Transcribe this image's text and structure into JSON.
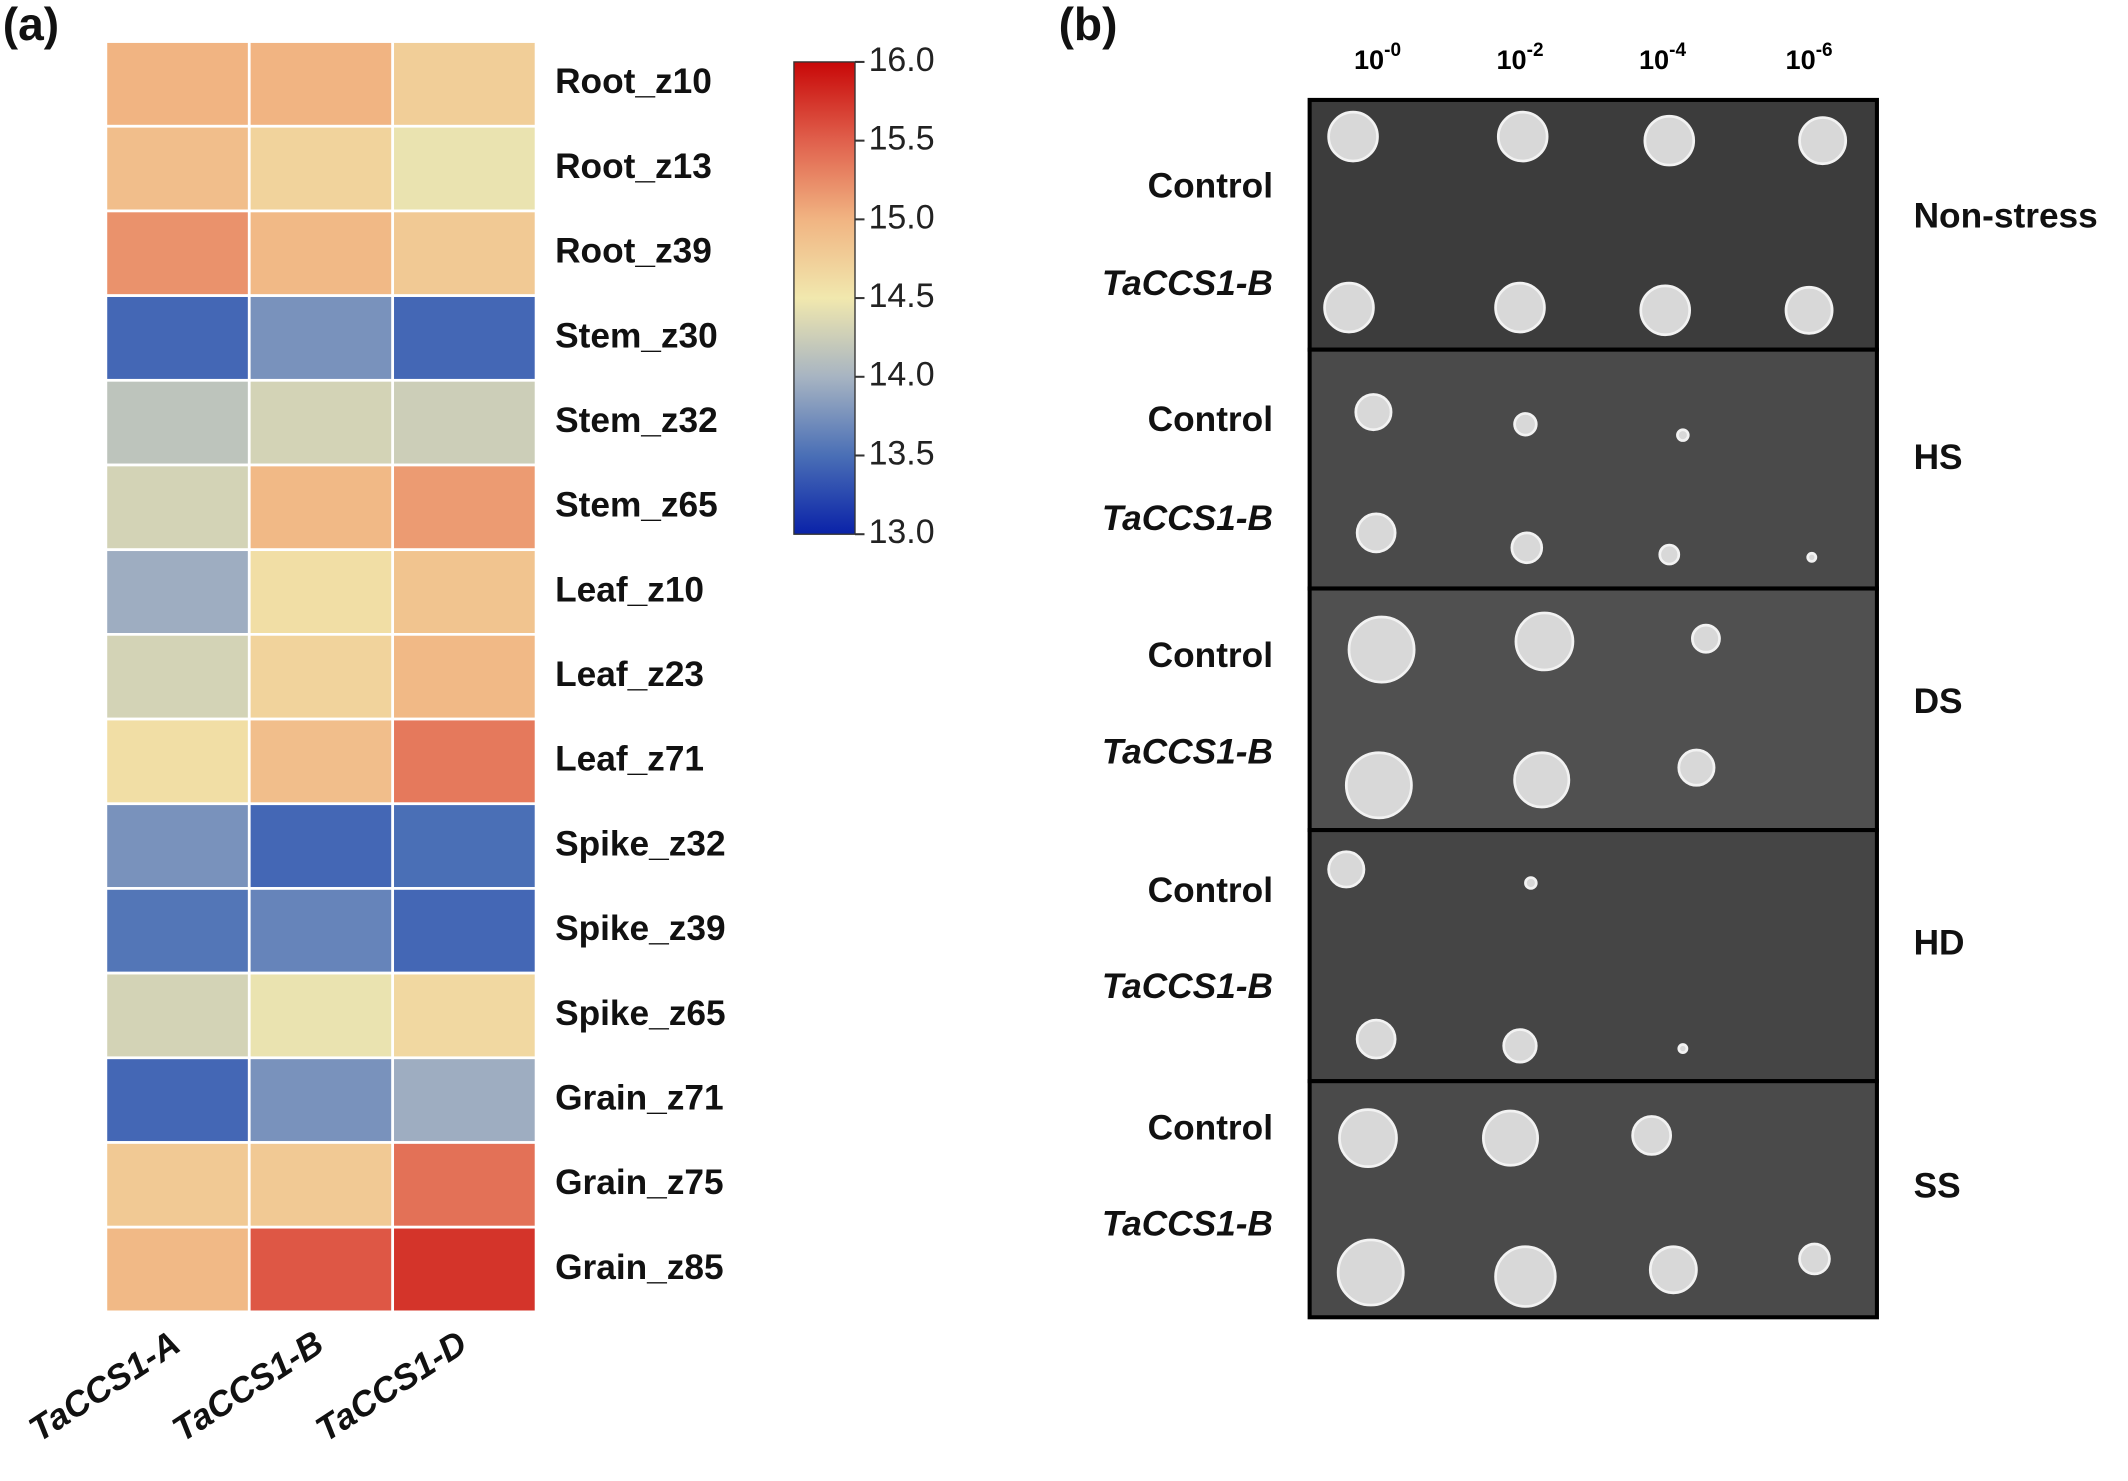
{
  "chart_data": {
    "type": "heatmap",
    "panel_label": "(a)",
    "rows": [
      "Root_z10",
      "Root_z13",
      "Root_z39",
      "Stem_z30",
      "Stem_z32",
      "Stem_z65",
      "Leaf_z10",
      "Leaf_z23",
      "Leaf_z71",
      "Spike_z32",
      "Spike_z39",
      "Spike_z65",
      "Grain_z71",
      "Grain_z75",
      "Grain_z85"
    ],
    "columns": [
      "TaCCS1-A",
      "TaCCS1-B",
      "TaCCS1-D"
    ],
    "values": [
      [
        15.0,
        15.0,
        14.75
      ],
      [
        14.9,
        14.7,
        14.45
      ],
      [
        15.2,
        14.95,
        14.8
      ],
      [
        13.45,
        13.75,
        13.45
      ],
      [
        14.15,
        14.3,
        14.25
      ],
      [
        14.3,
        14.95,
        15.15
      ],
      [
        13.95,
        14.6,
        14.85
      ],
      [
        14.3,
        14.7,
        14.95
      ],
      [
        14.6,
        14.9,
        15.35
      ],
      [
        13.75,
        13.45,
        13.5
      ],
      [
        13.55,
        13.65,
        13.45
      ],
      [
        14.3,
        14.45,
        14.65
      ],
      [
        13.45,
        13.75,
        13.95
      ],
      [
        14.8,
        14.8,
        15.4
      ],
      [
        14.95,
        15.55,
        15.75
      ]
    ],
    "zlim": [
      13,
      16
    ],
    "zticks": [
      {
        "value": 13,
        "label": "13.0"
      },
      13.5,
      {
        "value": 14,
        "label": "14.0"
      },
      14.5,
      {
        "value": 15,
        "label": "15.0"
      },
      15.5,
      {
        "value": 16,
        "label": "16.0"
      }
    ],
    "colormap": [
      "#0a22a8",
      "#4a6fb6",
      "#a7b4c2",
      "#f1e8ae",
      "#f1b482",
      "#e0604c",
      "#c80808"
    ]
  },
  "panel_b": {
    "panel_label": "(b)",
    "dilutions": [
      {
        "base": "10",
        "exponent": "-0"
      },
      {
        "base": "10",
        "exponent": "-2"
      },
      {
        "base": "10",
        "exponent": "-4"
      },
      {
        "base": "10",
        "exponent": "-6"
      }
    ],
    "conditions": [
      {
        "name": "Non-stress",
        "strains": [
          "Control",
          "TaCCS1-B"
        ]
      },
      {
        "name": "HS",
        "strains": [
          "Control",
          "TaCCS1-B"
        ]
      },
      {
        "name": "DS",
        "strains": [
          "Control",
          "TaCCS1-B"
        ]
      },
      {
        "name": "HD",
        "strains": [
          "Control",
          "TaCCS1-B"
        ]
      },
      {
        "name": "SS",
        "strains": [
          "Control",
          "TaCCS1-B"
        ]
      }
    ]
  }
}
